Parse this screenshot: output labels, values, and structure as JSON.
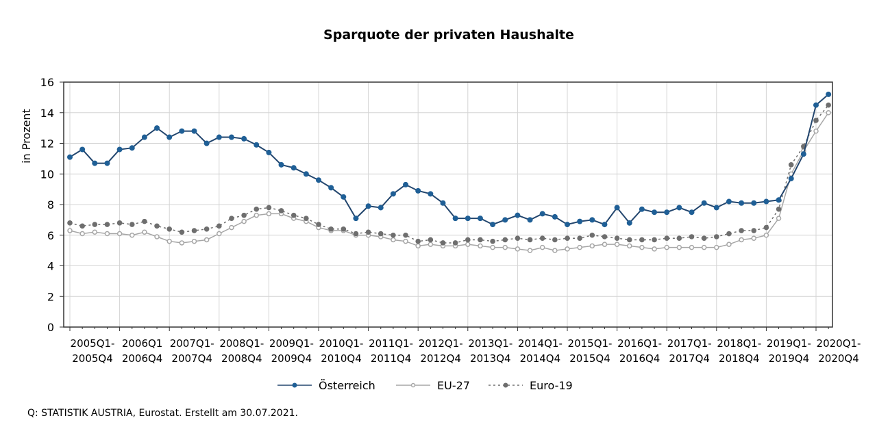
{
  "chart_data": {
    "type": "line",
    "title": "Sparquote der privaten Haushalte",
    "ylabel": "in Prozent",
    "xlabel": "",
    "ylim": [
      0,
      16
    ],
    "yticks": [
      0,
      2,
      4,
      6,
      8,
      10,
      12,
      14,
      16
    ],
    "grid": true,
    "legend_position": "bottom",
    "x_start": "2005Q1",
    "x_end": "2020Q2",
    "x_tick_labels": [
      [
        "2005Q1-",
        "2005Q4"
      ],
      [
        "2006Q1",
        "2006Q4"
      ],
      [
        "2007Q1-",
        "2007Q4"
      ],
      [
        "2008Q1-",
        "2008Q4"
      ],
      [
        "2009Q1-",
        "2009Q4"
      ],
      [
        "2010Q1-",
        "2010Q4"
      ],
      [
        "2011Q1-",
        "2011Q4"
      ],
      [
        "2012Q1-",
        "2012Q4"
      ],
      [
        "2013Q1-",
        "2013Q4"
      ],
      [
        "2014Q1-",
        "2014Q4"
      ],
      [
        "2015Q1-",
        "2015Q4"
      ],
      [
        "2016Q1-",
        "2016Q4"
      ],
      [
        "2017Q1-",
        "2017Q4"
      ],
      [
        "2018Q1-",
        "2018Q4"
      ],
      [
        "2019Q1-",
        "2019Q4"
      ],
      [
        "2020Q1-",
        "2020Q4"
      ]
    ],
    "series": [
      {
        "name": "Österreich",
        "color": "#1f5f96",
        "style": "solid-dot",
        "values": [
          11.1,
          11.6,
          10.7,
          10.7,
          11.6,
          11.7,
          12.4,
          13.0,
          12.4,
          12.8,
          12.8,
          12.0,
          12.4,
          12.4,
          12.3,
          11.9,
          11.4,
          10.6,
          10.4,
          10.0,
          9.6,
          9.1,
          8.5,
          7.1,
          7.9,
          7.8,
          8.7,
          9.3,
          8.9,
          8.7,
          8.1,
          7.1,
          7.1,
          7.1,
          6.7,
          7.0,
          7.3,
          7.0,
          7.4,
          7.2,
          6.7,
          6.9,
          7.0,
          6.7,
          7.8,
          6.8,
          7.7,
          7.5,
          7.5,
          7.8,
          7.5,
          8.1,
          7.8,
          8.2,
          8.1,
          8.1,
          8.2,
          8.3,
          9.7,
          11.3,
          14.5,
          15.2
        ]
      },
      {
        "name": "EU-27",
        "color": "#a6a6a6",
        "style": "solid-hollow",
        "values": [
          6.3,
          6.1,
          6.2,
          6.1,
          6.1,
          6.0,
          6.2,
          5.9,
          5.6,
          5.5,
          5.6,
          5.7,
          6.1,
          6.5,
          6.9,
          7.3,
          7.4,
          7.4,
          7.1,
          6.9,
          6.5,
          6.3,
          6.3,
          6.0,
          6.0,
          5.9,
          5.7,
          5.6,
          5.3,
          5.4,
          5.3,
          5.3,
          5.4,
          5.3,
          5.2,
          5.2,
          5.1,
          5.0,
          5.2,
          5.0,
          5.1,
          5.2,
          5.3,
          5.4,
          5.4,
          5.3,
          5.2,
          5.1,
          5.2,
          5.2,
          5.2,
          5.2,
          5.2,
          5.4,
          5.7,
          5.8,
          6.0,
          7.1,
          10.0,
          11.5,
          12.8,
          14.0
        ]
      },
      {
        "name": "Euro-19",
        "color": "#6e6e6e",
        "style": "dotted-dot",
        "values": [
          6.8,
          6.6,
          6.7,
          6.7,
          6.8,
          6.7,
          6.9,
          6.6,
          6.4,
          6.2,
          6.3,
          6.4,
          6.6,
          7.1,
          7.3,
          7.7,
          7.8,
          7.6,
          7.3,
          7.1,
          6.7,
          6.4,
          6.4,
          6.1,
          6.2,
          6.1,
          6.0,
          6.0,
          5.6,
          5.7,
          5.5,
          5.5,
          5.7,
          5.7,
          5.6,
          5.7,
          5.8,
          5.7,
          5.8,
          5.7,
          5.8,
          5.8,
          6.0,
          5.9,
          5.8,
          5.7,
          5.7,
          5.7,
          5.8,
          5.8,
          5.9,
          5.8,
          5.9,
          6.1,
          6.3,
          6.3,
          6.5,
          7.7,
          10.6,
          11.8,
          13.5,
          14.5
        ]
      }
    ]
  },
  "source_note": "Q: STATISTIK AUSTRIA, Eurostat. Erstellt am 30.07.2021."
}
